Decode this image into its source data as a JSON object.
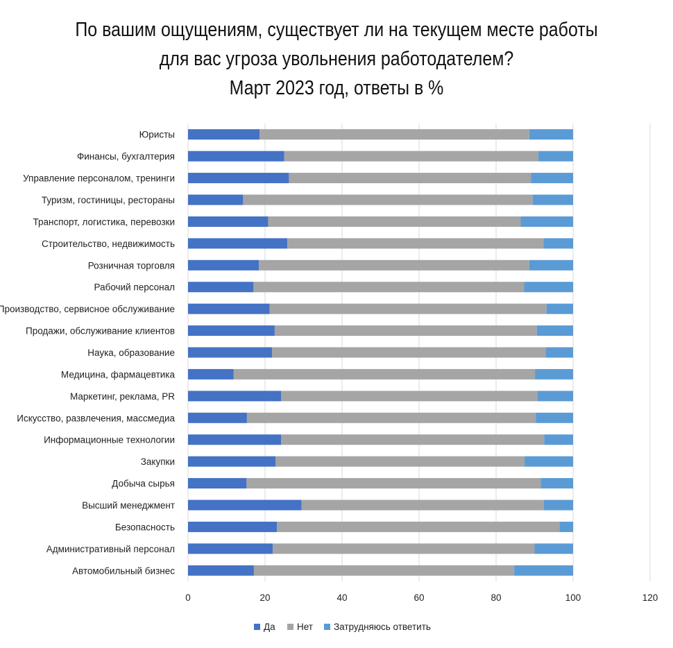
{
  "chart_data": {
    "type": "bar",
    "orientation": "horizontal",
    "stacked": true,
    "title_lines": [
      "По вашим ощущениям, существует ли на текущем месте работы",
      "для вас угроза увольнения работодателем?",
      "Март 2023 год, ответы в %"
    ],
    "categories": [
      "Юристы",
      "Финансы, бухгалтерия",
      "Управление персоналом, тренинги",
      "Туризм, гостиницы, рестораны",
      "Транспорт, логистика, перевозки",
      "Строительство, недвижимость",
      "Розничная торговля",
      "Рабочий персонал",
      "Производство, сервисное обслуживание",
      "Продажи, обслуживание клиентов",
      "Наука, образование",
      "Медицина, фармацевтика",
      "Маркетинг, реклама, PR",
      "Искусство, развлечения, массмедиа",
      "Информационные технологии",
      "Закупки",
      "Добыча сырья",
      "Высший менеджмент",
      "Безопасность",
      "Административный персонал",
      "Автомобильный бизнес"
    ],
    "series": [
      {
        "name": "Да",
        "color": "#4472C4",
        "values": [
          18.6,
          25.0,
          26.2,
          14.3,
          20.8,
          25.8,
          18.4,
          17.0,
          21.2,
          22.5,
          21.8,
          11.8,
          24.2,
          15.3,
          24.2,
          22.7,
          15.2,
          29.5,
          23.1,
          22.0,
          17.1
        ]
      },
      {
        "name": "Нет",
        "color": "#A5A5A5",
        "values": [
          70.0,
          66.0,
          62.9,
          75.2,
          65.6,
          66.5,
          70.2,
          70.3,
          71.9,
          68.1,
          71.1,
          78.3,
          66.6,
          75.0,
          68.3,
          64.7,
          76.4,
          62.9,
          73.4,
          68.0,
          67.6
        ]
      },
      {
        "name": "Затрудняюсь ответить",
        "color": "#5B9BD5",
        "values": [
          11.4,
          9.0,
          10.9,
          10.5,
          13.6,
          7.7,
          11.4,
          12.7,
          6.9,
          9.4,
          7.1,
          9.9,
          9.2,
          9.7,
          7.5,
          12.6,
          8.4,
          7.6,
          3.5,
          10.0,
          15.3
        ]
      }
    ],
    "xlim": [
      0,
      120
    ],
    "xticks": [
      "0",
      "20",
      "40",
      "60",
      "80",
      "100",
      "120"
    ],
    "grid": "vertical",
    "legend": "bottom"
  }
}
